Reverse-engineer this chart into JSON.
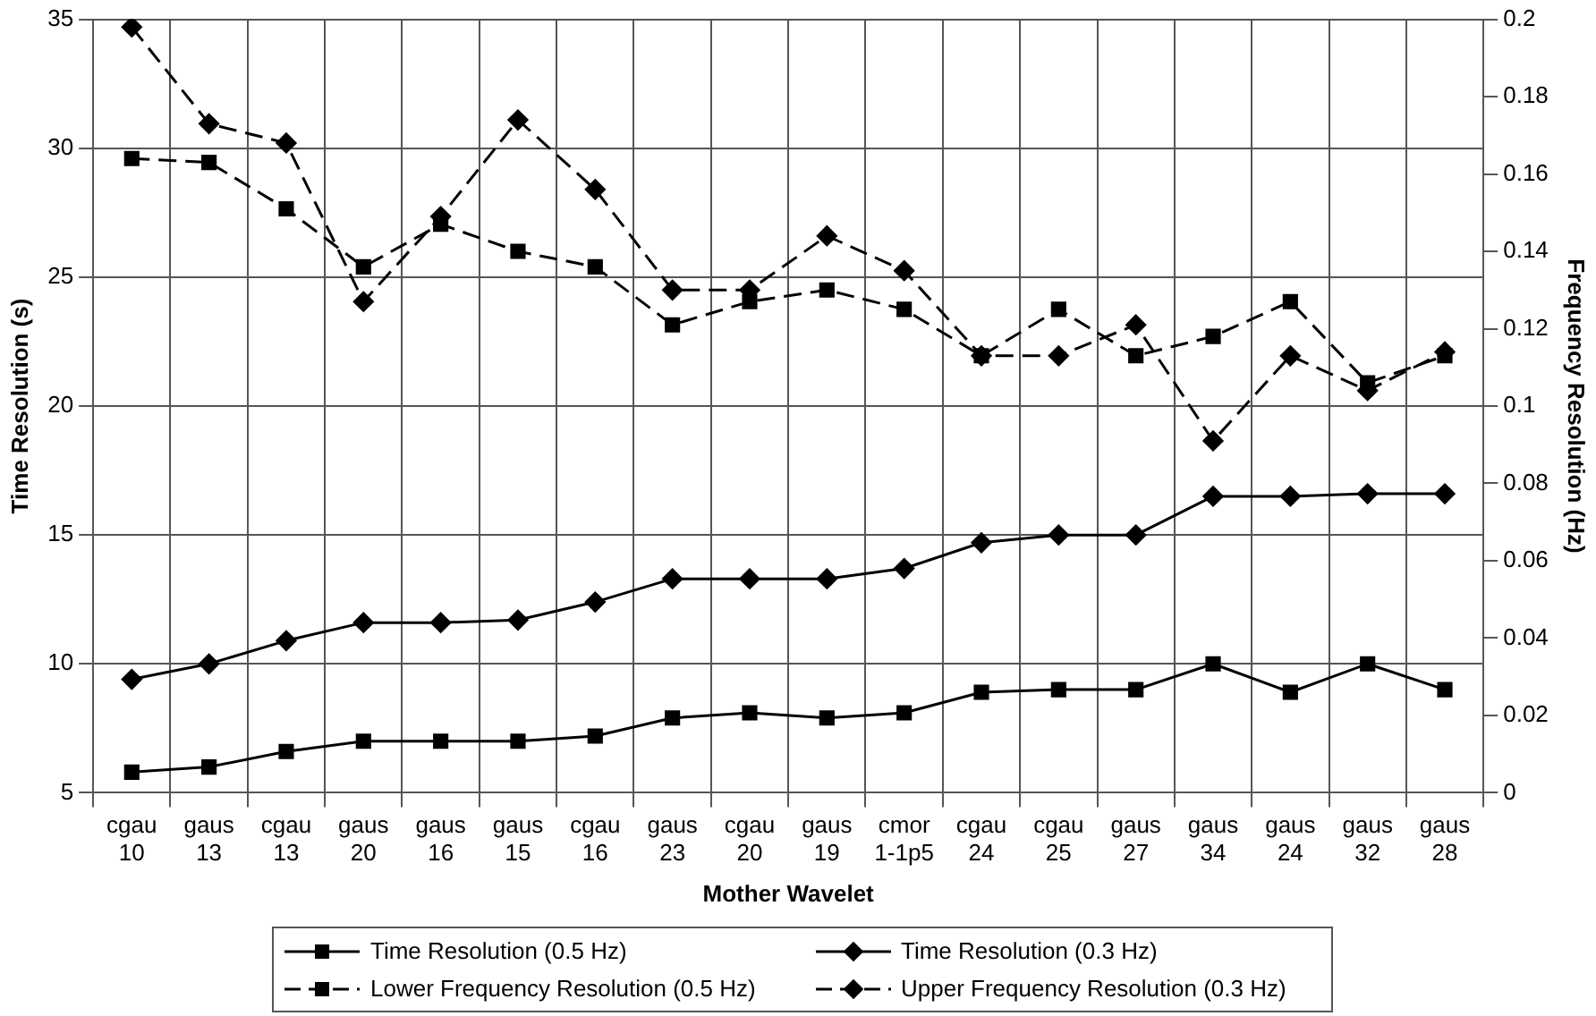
{
  "chart_data": {
    "type": "line",
    "xlabel": "Mother Wavelet",
    "ylabel": "Time Resolution (s)",
    "y2label": "Frequency Resolution (Hz)",
    "categories": [
      "cgau 10",
      "gaus 13",
      "cgau 13",
      "gaus 20",
      "gaus 16",
      "gaus 15",
      "cgau 16",
      "gaus 23",
      "cgau 20",
      "gaus 19",
      "cmor 1-1p5",
      "cgau 24",
      "cgau 25",
      "gaus 27",
      "gaus 34",
      "gaus 24",
      "gaus 32",
      "gaus 28"
    ],
    "ylim": [
      5,
      35
    ],
    "yticks": [
      5,
      10,
      15,
      20,
      25,
      30,
      35
    ],
    "y2lim": [
      0,
      0.2
    ],
    "y2ticks": [
      0,
      0.02,
      0.04,
      0.06,
      0.08,
      0.1,
      0.12,
      0.14,
      0.16,
      0.18,
      0.2
    ],
    "grid": true,
    "legend": "bottom",
    "series": [
      {
        "name": "Time Resolution (0.5 Hz)",
        "color": "#000000",
        "marker": "square",
        "line_style": "solid",
        "values": [
          5.8,
          6.0,
          6.6,
          7.0,
          7.0,
          7.0,
          7.2,
          7.9,
          8.1,
          7.9,
          8.1,
          8.9,
          9.0,
          9.0,
          10.0,
          8.9,
          10.0,
          9.0
        ]
      },
      {
        "name": "Time Resolution (0.3 Hz)",
        "color": "#000000",
        "marker": "diamond",
        "line_style": "solid",
        "values": [
          9.4,
          10.0,
          10.9,
          11.6,
          11.6,
          11.7,
          12.4,
          13.3,
          13.3,
          13.3,
          13.7,
          14.7,
          15.0,
          15.0,
          16.5,
          16.5,
          16.6,
          16.6
        ]
      },
      {
        "name": "Lower Frequency Resolution (0.5 Hz)",
        "color": "#000000",
        "marker": "square",
        "line_style": "dashed",
        "axis": "y2",
        "values": [
          0.164,
          0.163,
          0.151,
          0.136,
          0.147,
          0.14,
          0.136,
          0.121,
          0.127,
          0.13,
          0.125,
          0.113,
          0.125,
          0.113,
          0.118,
          0.127,
          0.106,
          0.113
        ]
      },
      {
        "name": "Upper Frequency Resolution (0.3 Hz)",
        "color": "#000000",
        "marker": "diamond",
        "line_style": "dashed",
        "axis": "y2",
        "values": [
          0.198,
          0.173,
          0.168,
          0.127,
          0.149,
          0.174,
          0.156,
          0.13,
          0.13,
          0.144,
          0.135,
          0.113,
          0.113,
          0.121,
          0.091,
          0.113,
          0.104,
          0.114
        ]
      }
    ]
  }
}
